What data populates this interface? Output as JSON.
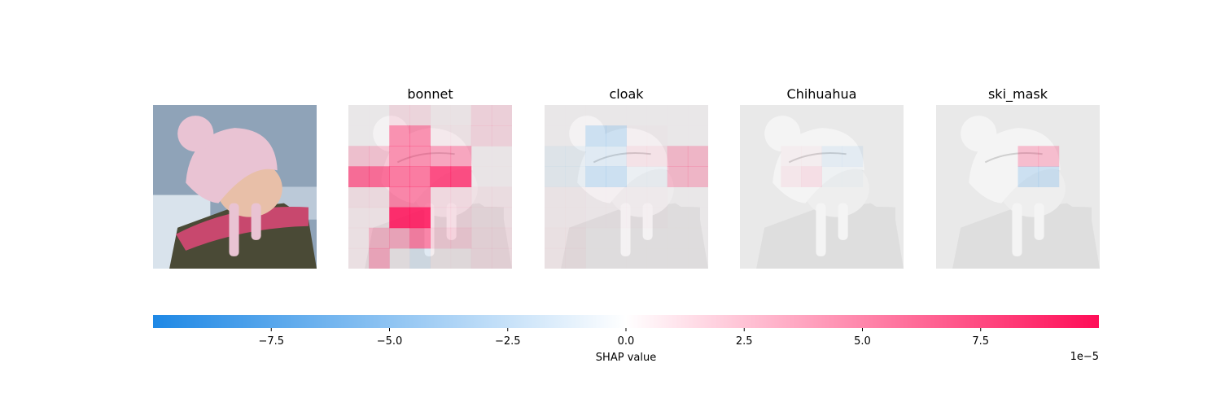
{
  "chart_data": {
    "type": "heatmap",
    "title": "",
    "panels": [
      {
        "name": "original-image",
        "label": "",
        "kind": "photo"
      },
      {
        "name": "bonnet",
        "label": "bonnet",
        "kind": "shap"
      },
      {
        "name": "cloak",
        "label": "cloak",
        "kind": "shap"
      },
      {
        "name": "chihuahua",
        "label": "Chihuahua",
        "kind": "shap"
      },
      {
        "name": "ski-mask",
        "label": "ski_mask",
        "kind": "shap"
      }
    ],
    "grid_size": 8,
    "shap_grids": {
      "bonnet": [
        [
          0.1,
          0.1,
          1.0,
          1.0,
          0.3,
          0.3,
          1.2,
          1.2
        ],
        [
          0.1,
          0.1,
          4.5,
          4.5,
          0.5,
          0.5,
          1.2,
          1.2
        ],
        [
          2.0,
          2.0,
          4.5,
          4.5,
          3.5,
          3.5,
          0.2,
          0.2
        ],
        [
          6.0,
          6.0,
          5.5,
          5.5,
          7.5,
          7.5,
          0.2,
          0.2
        ],
        [
          0.8,
          0.8,
          5.0,
          5.0,
          1.0,
          1.0,
          0.6,
          0.6
        ],
        [
          0.5,
          0.5,
          9.0,
          9.0,
          1.0,
          1.0,
          0.6,
          0.6
        ],
        [
          0.5,
          2.5,
          3.0,
          5.0,
          1.5,
          1.5,
          0.8,
          0.8
        ],
        [
          0.5,
          3.0,
          0.2,
          -1.0,
          0.3,
          0.3,
          0.8,
          0.8
        ]
      ],
      "cloak": [
        [
          0.1,
          0.1,
          0.1,
          0.1,
          0.1,
          0.1,
          0.1,
          0.1
        ],
        [
          0.1,
          0.1,
          -2.0,
          -2.0,
          0.2,
          0.2,
          0.1,
          0.1
        ],
        [
          -0.6,
          -0.6,
          -1.0,
          -1.0,
          0.8,
          0.8,
          2.5,
          2.5
        ],
        [
          -0.6,
          -0.6,
          -2.0,
          -2.0,
          -0.4,
          -0.4,
          2.5,
          2.5
        ],
        [
          0.3,
          0.3,
          0.2,
          0.2,
          0.2,
          0.2,
          0.1,
          0.1
        ],
        [
          0.3,
          0.3,
          0.2,
          0.2,
          0.2,
          0.2,
          0.1,
          0.1
        ],
        [
          0.4,
          0.4,
          0.1,
          0.1,
          0.1,
          0.1,
          0.1,
          0.1
        ],
        [
          0.4,
          0.4,
          0.1,
          0.1,
          0.1,
          0.1,
          0.1,
          0.1
        ]
      ],
      "chihuahua": [
        [
          0.0,
          0.0,
          0.0,
          0.0,
          0.0,
          0.0,
          0.0,
          0.0
        ],
        [
          0.0,
          0.0,
          0.0,
          0.0,
          0.0,
          0.0,
          0.0,
          0.0
        ],
        [
          0.0,
          0.0,
          0.3,
          0.3,
          -0.8,
          -0.8,
          0.0,
          0.0
        ],
        [
          0.0,
          0.0,
          0.6,
          1.0,
          -0.3,
          -0.3,
          0.0,
          0.0
        ],
        [
          0.0,
          0.0,
          0.0,
          0.0,
          0.0,
          0.0,
          0.0,
          0.0
        ],
        [
          0.0,
          0.0,
          0.0,
          0.0,
          0.0,
          0.0,
          0.0,
          0.0
        ],
        [
          0.0,
          0.0,
          0.0,
          0.0,
          0.0,
          0.0,
          0.0,
          0.0
        ],
        [
          0.0,
          0.0,
          0.0,
          0.0,
          0.0,
          0.0,
          0.0,
          0.0
        ]
      ],
      "ski_mask": [
        [
          0.0,
          0.0,
          0.0,
          0.0,
          0.0,
          0.0,
          0.0,
          0.0
        ],
        [
          0.0,
          0.0,
          0.0,
          0.0,
          0.0,
          0.0,
          0.0,
          0.0
        ],
        [
          0.0,
          0.0,
          0.0,
          0.0,
          2.5,
          2.5,
          0.0,
          0.0
        ],
        [
          0.0,
          0.0,
          0.0,
          0.0,
          -2.0,
          -2.0,
          0.0,
          0.0
        ],
        [
          0.0,
          0.0,
          0.0,
          0.0,
          0.0,
          0.0,
          0.0,
          0.0
        ],
        [
          0.0,
          0.0,
          0.0,
          0.0,
          0.0,
          0.0,
          0.0,
          0.0
        ],
        [
          0.0,
          0.0,
          0.0,
          0.0,
          0.0,
          0.0,
          0.0,
          0.0
        ],
        [
          0.0,
          0.0,
          0.0,
          0.0,
          0.0,
          0.0,
          0.0,
          0.0
        ]
      ]
    },
    "colorbar": {
      "label": "SHAP value",
      "range": [
        -0.0001,
        0.0001
      ],
      "ticks": [
        -7.5,
        -5.0,
        -2.5,
        0.0,
        2.5,
        5.0,
        7.5
      ],
      "tick_labels": [
        "−7.5",
        "−5.0",
        "−2.5",
        "0.0",
        "2.5",
        "5.0",
        "7.5"
      ],
      "scale_label": "1e−5",
      "scale_factor": 1e-05,
      "negative_color": "#1e88e5",
      "positive_color": "#ff0d57",
      "neutral_color": "#ffffff"
    },
    "photo_colors": {
      "sky": "#8fa3b8",
      "snow": "#d9e3ec",
      "hat": "#e9c3d3",
      "face": "#e8bfa8",
      "scarf": "#c8486e",
      "jacket": "#4a4a36"
    },
    "grayscale_colors": {
      "background": "#e9e9e9",
      "hat": "#f4f4f4",
      "face": "#eeeeee",
      "jacket": "#dedede",
      "line": "#cfcfcf"
    }
  }
}
